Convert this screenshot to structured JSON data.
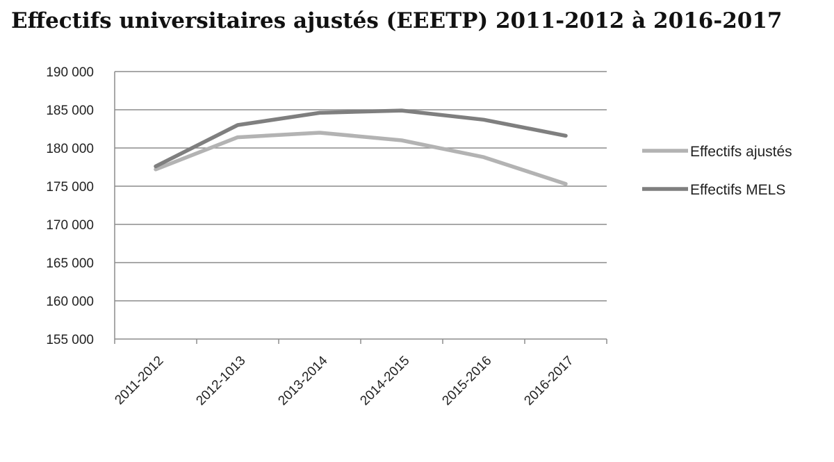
{
  "chart_data": {
    "type": "line",
    "title": "Effectifs universitaires ajustés (EEETP) 2011-2012 à 2016-2017",
    "xlabel": "",
    "ylabel": "",
    "categories": [
      "2011-2012",
      "2012-1013",
      "2013-2014",
      "2014-2015",
      "2015-2016",
      "2016-2017"
    ],
    "ylim": [
      155000,
      190000
    ],
    "yticks": [
      155000,
      160000,
      165000,
      170000,
      175000,
      180000,
      185000,
      190000
    ],
    "ytick_labels": [
      "155 000",
      "160 000",
      "165 000",
      "170 000",
      "175 000",
      "180 000",
      "185 000",
      "190 000"
    ],
    "grid": true,
    "legend_position": "right",
    "series": [
      {
        "name": "Effectifs ajustés",
        "color": "#b3b3b3",
        "values": [
          177200,
          181400,
          182000,
          181000,
          178800,
          175300
        ]
      },
      {
        "name": "Effectifs MELS",
        "color": "#7f7f7f",
        "values": [
          177600,
          183000,
          184600,
          184900,
          183700,
          181600
        ]
      }
    ]
  }
}
